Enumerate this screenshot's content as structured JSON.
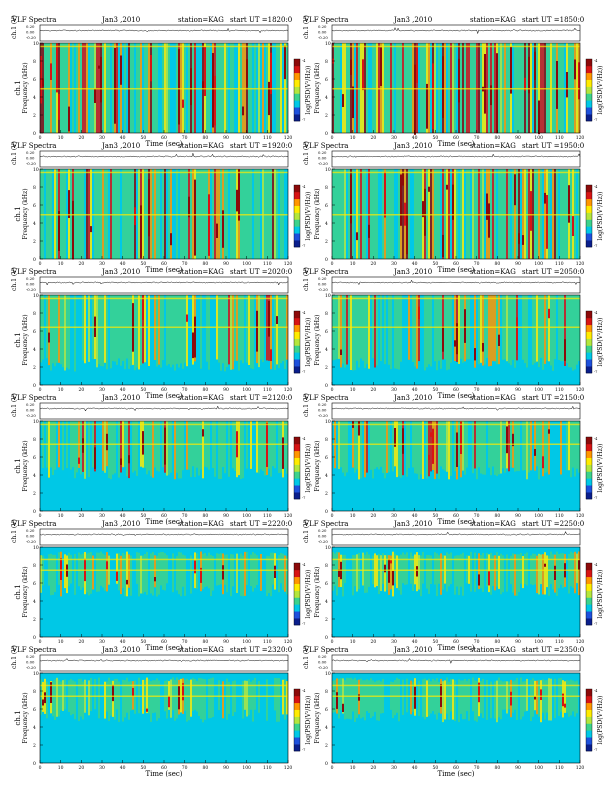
{
  "common": {
    "program": "VLF Spectra",
    "date": "Jan3 ,2010",
    "station": "station=KAG",
    "start_prefix": "start  UT  =",
    "ch_label": "ch.1 (V)",
    "ch_ticks": [
      "0.20",
      "0.00",
      "-0.20"
    ],
    "freq_label_1": "ch.1",
    "freq_label_2": "Frequency  (kHz)",
    "freq_ticks": [
      "0",
      "2",
      "4",
      "6",
      "8",
      "10"
    ],
    "time_label": "Time  (sec)",
    "time_ticks": [
      "0",
      "10",
      "20",
      "30",
      "40",
      "50",
      "60",
      "70",
      "80",
      "90",
      "100",
      "110",
      "120"
    ],
    "colorbar_label": "log(PSD(V²/Hz))",
    "colorbar_ticks": [
      "-4",
      "-7"
    ]
  },
  "colors": {
    "background": "#00c8e6",
    "colormap": [
      "#0a1e8c",
      "#1e50dc",
      "#00c8e6",
      "#3cd28c",
      "#b4e63c",
      "#ffeb00",
      "#ff9600",
      "#d71414",
      "#8c0a0a"
    ]
  },
  "chart_data": [
    {
      "type": "heatmap",
      "start_ut": "1820:0",
      "xlim": [
        0,
        120
      ],
      "ylim": [
        0,
        10
      ],
      "xlabel": "Time  (sec)",
      "ylabel": "ch.1 Frequency  (kHz)",
      "activity": "high",
      "band_khz": [
        0,
        10
      ]
    },
    {
      "type": "heatmap",
      "start_ut": "1850:0",
      "xlim": [
        0,
        120
      ],
      "ylim": [
        0,
        10
      ],
      "xlabel": "Time  (sec)",
      "ylabel": "Frequency  (kHz)",
      "activity": "high",
      "band_khz": [
        0,
        10
      ]
    },
    {
      "type": "heatmap",
      "start_ut": "1920:0",
      "xlim": [
        0,
        120
      ],
      "ylim": [
        0,
        10
      ],
      "xlabel": "Time  (sec)",
      "ylabel": "ch.1 Frequency  (kHz)",
      "activity": "high",
      "band_khz": [
        0,
        10
      ]
    },
    {
      "type": "heatmap",
      "start_ut": "1950:0",
      "xlim": [
        0,
        120
      ],
      "ylim": [
        0,
        10
      ],
      "xlabel": "Time  (sec)",
      "ylabel": "Frequency  (kHz)",
      "activity": "high",
      "band_khz": [
        0,
        10
      ]
    },
    {
      "type": "heatmap",
      "start_ut": "2020:0",
      "xlim": [
        0,
        120
      ],
      "ylim": [
        0,
        10
      ],
      "xlabel": "Time  (sec)",
      "ylabel": "ch.1 Frequency  (kHz)",
      "activity": "medium",
      "band_khz": [
        3,
        10
      ]
    },
    {
      "type": "heatmap",
      "start_ut": "2050:0",
      "xlim": [
        0,
        120
      ],
      "ylim": [
        0,
        10
      ],
      "xlabel": "Time  (sec)",
      "ylabel": "Frequency  (kHz)",
      "activity": "medium",
      "band_khz": [
        3,
        10
      ]
    },
    {
      "type": "heatmap",
      "start_ut": "2120:0",
      "xlim": [
        0,
        120
      ],
      "ylim": [
        0,
        10
      ],
      "xlabel": "Time  (sec)",
      "ylabel": "ch.1 Frequency  (kHz)",
      "activity": "medium",
      "band_khz": [
        5,
        10
      ]
    },
    {
      "type": "heatmap",
      "start_ut": "2150:0",
      "xlim": [
        0,
        120
      ],
      "ylim": [
        0,
        10
      ],
      "xlabel": "Time  (sec)",
      "ylabel": "Frequency  (kHz)",
      "activity": "medium",
      "band_khz": [
        5,
        10
      ]
    },
    {
      "type": "heatmap",
      "start_ut": "2220:0",
      "xlim": [
        0,
        120
      ],
      "ylim": [
        0,
        10
      ],
      "xlabel": "Time  (sec)",
      "ylabel": "ch.1 Frequency  (kHz)",
      "activity": "low",
      "band_khz": [
        6,
        9
      ]
    },
    {
      "type": "heatmap",
      "start_ut": "2250:0",
      "xlim": [
        0,
        120
      ],
      "ylim": [
        0,
        10
      ],
      "xlabel": "Time  (sec)",
      "ylabel": "Frequency  (kHz)",
      "activity": "low",
      "band_khz": [
        6,
        9
      ]
    },
    {
      "type": "heatmap",
      "start_ut": "2320:0",
      "xlim": [
        0,
        120
      ],
      "ylim": [
        0,
        10
      ],
      "xlabel": "Time  (sec)",
      "ylabel": "ch.1 Frequency  (kHz)",
      "activity": "low",
      "band_khz": [
        6,
        9
      ]
    },
    {
      "type": "heatmap",
      "start_ut": "2350:0",
      "xlim": [
        0,
        120
      ],
      "ylim": [
        0,
        10
      ],
      "xlabel": "Time  (sec)",
      "ylabel": "Frequency  (kHz)",
      "activity": "low",
      "band_khz": [
        6,
        9
      ]
    }
  ]
}
